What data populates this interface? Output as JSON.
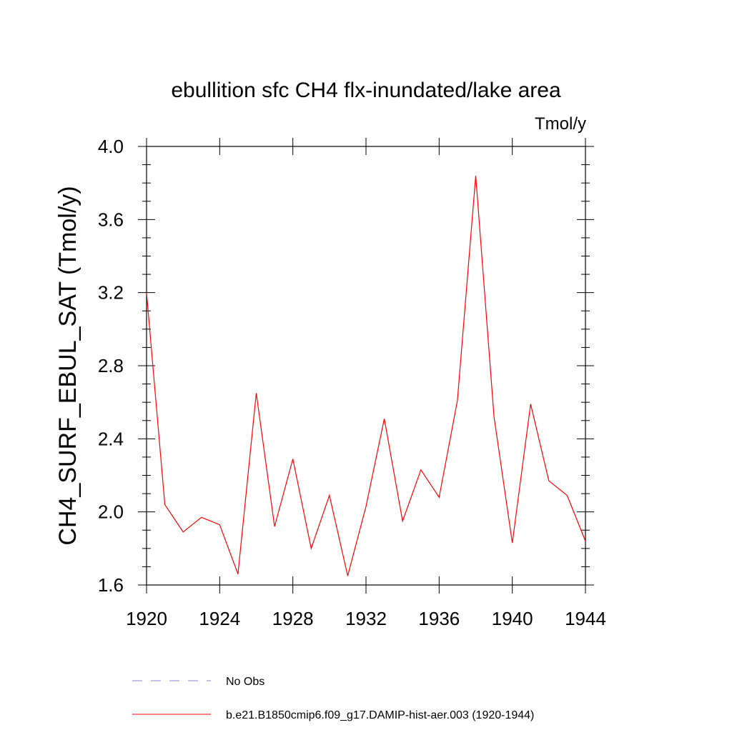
{
  "chart_data": {
    "type": "line",
    "title": "ebullition sfc CH4 flx-inundated/lake area",
    "units_label": "Tmol/y",
    "ylabel": "CH4_SURF_EBUL_SAT  (Tmol/y)",
    "xlabel": "",
    "xlim": [
      1920,
      1944
    ],
    "ylim": [
      1.6,
      4.0
    ],
    "x_ticks": [
      1920,
      1924,
      1928,
      1932,
      1936,
      1940,
      1944
    ],
    "x_tick_labels": [
      "1920",
      "1924",
      "1928",
      "1932",
      "1936",
      "1940",
      "1944"
    ],
    "y_ticks": [
      1.6,
      2.0,
      2.4,
      2.8,
      3.2,
      3.6,
      4.0
    ],
    "y_tick_labels": [
      "1.6",
      "2.0",
      "2.4",
      "2.8",
      "3.2",
      "3.6",
      "4.0"
    ],
    "grid": false,
    "legend_position": "bottom",
    "series": [
      {
        "name": "b.e21.B1850cmip6.f09_g17.DAMIP-hist-aer.003 (1920-1944)",
        "color": "#ff0000",
        "style": "solid",
        "x": [
          1920,
          1921,
          1922,
          1923,
          1924,
          1925,
          1926,
          1927,
          1928,
          1929,
          1930,
          1931,
          1932,
          1933,
          1934,
          1935,
          1936,
          1937,
          1938,
          1939,
          1940,
          1941,
          1942,
          1943,
          1944
        ],
        "y": [
          3.2,
          2.04,
          1.89,
          1.97,
          1.93,
          1.66,
          2.65,
          1.92,
          2.29,
          1.8,
          2.09,
          1.65,
          2.03,
          2.51,
          1.95,
          2.23,
          2.08,
          2.61,
          3.84,
          2.52,
          1.83,
          2.59,
          2.17,
          2.09,
          1.84
        ]
      }
    ],
    "legend": [
      {
        "label": "No Obs",
        "color": "#8080d0",
        "style": "dashed"
      },
      {
        "label": "b.e21.B1850cmip6.f09_g17.DAMIP-hist-aer.003 (1920-1944)",
        "color": "#ff0000",
        "style": "solid"
      }
    ]
  }
}
